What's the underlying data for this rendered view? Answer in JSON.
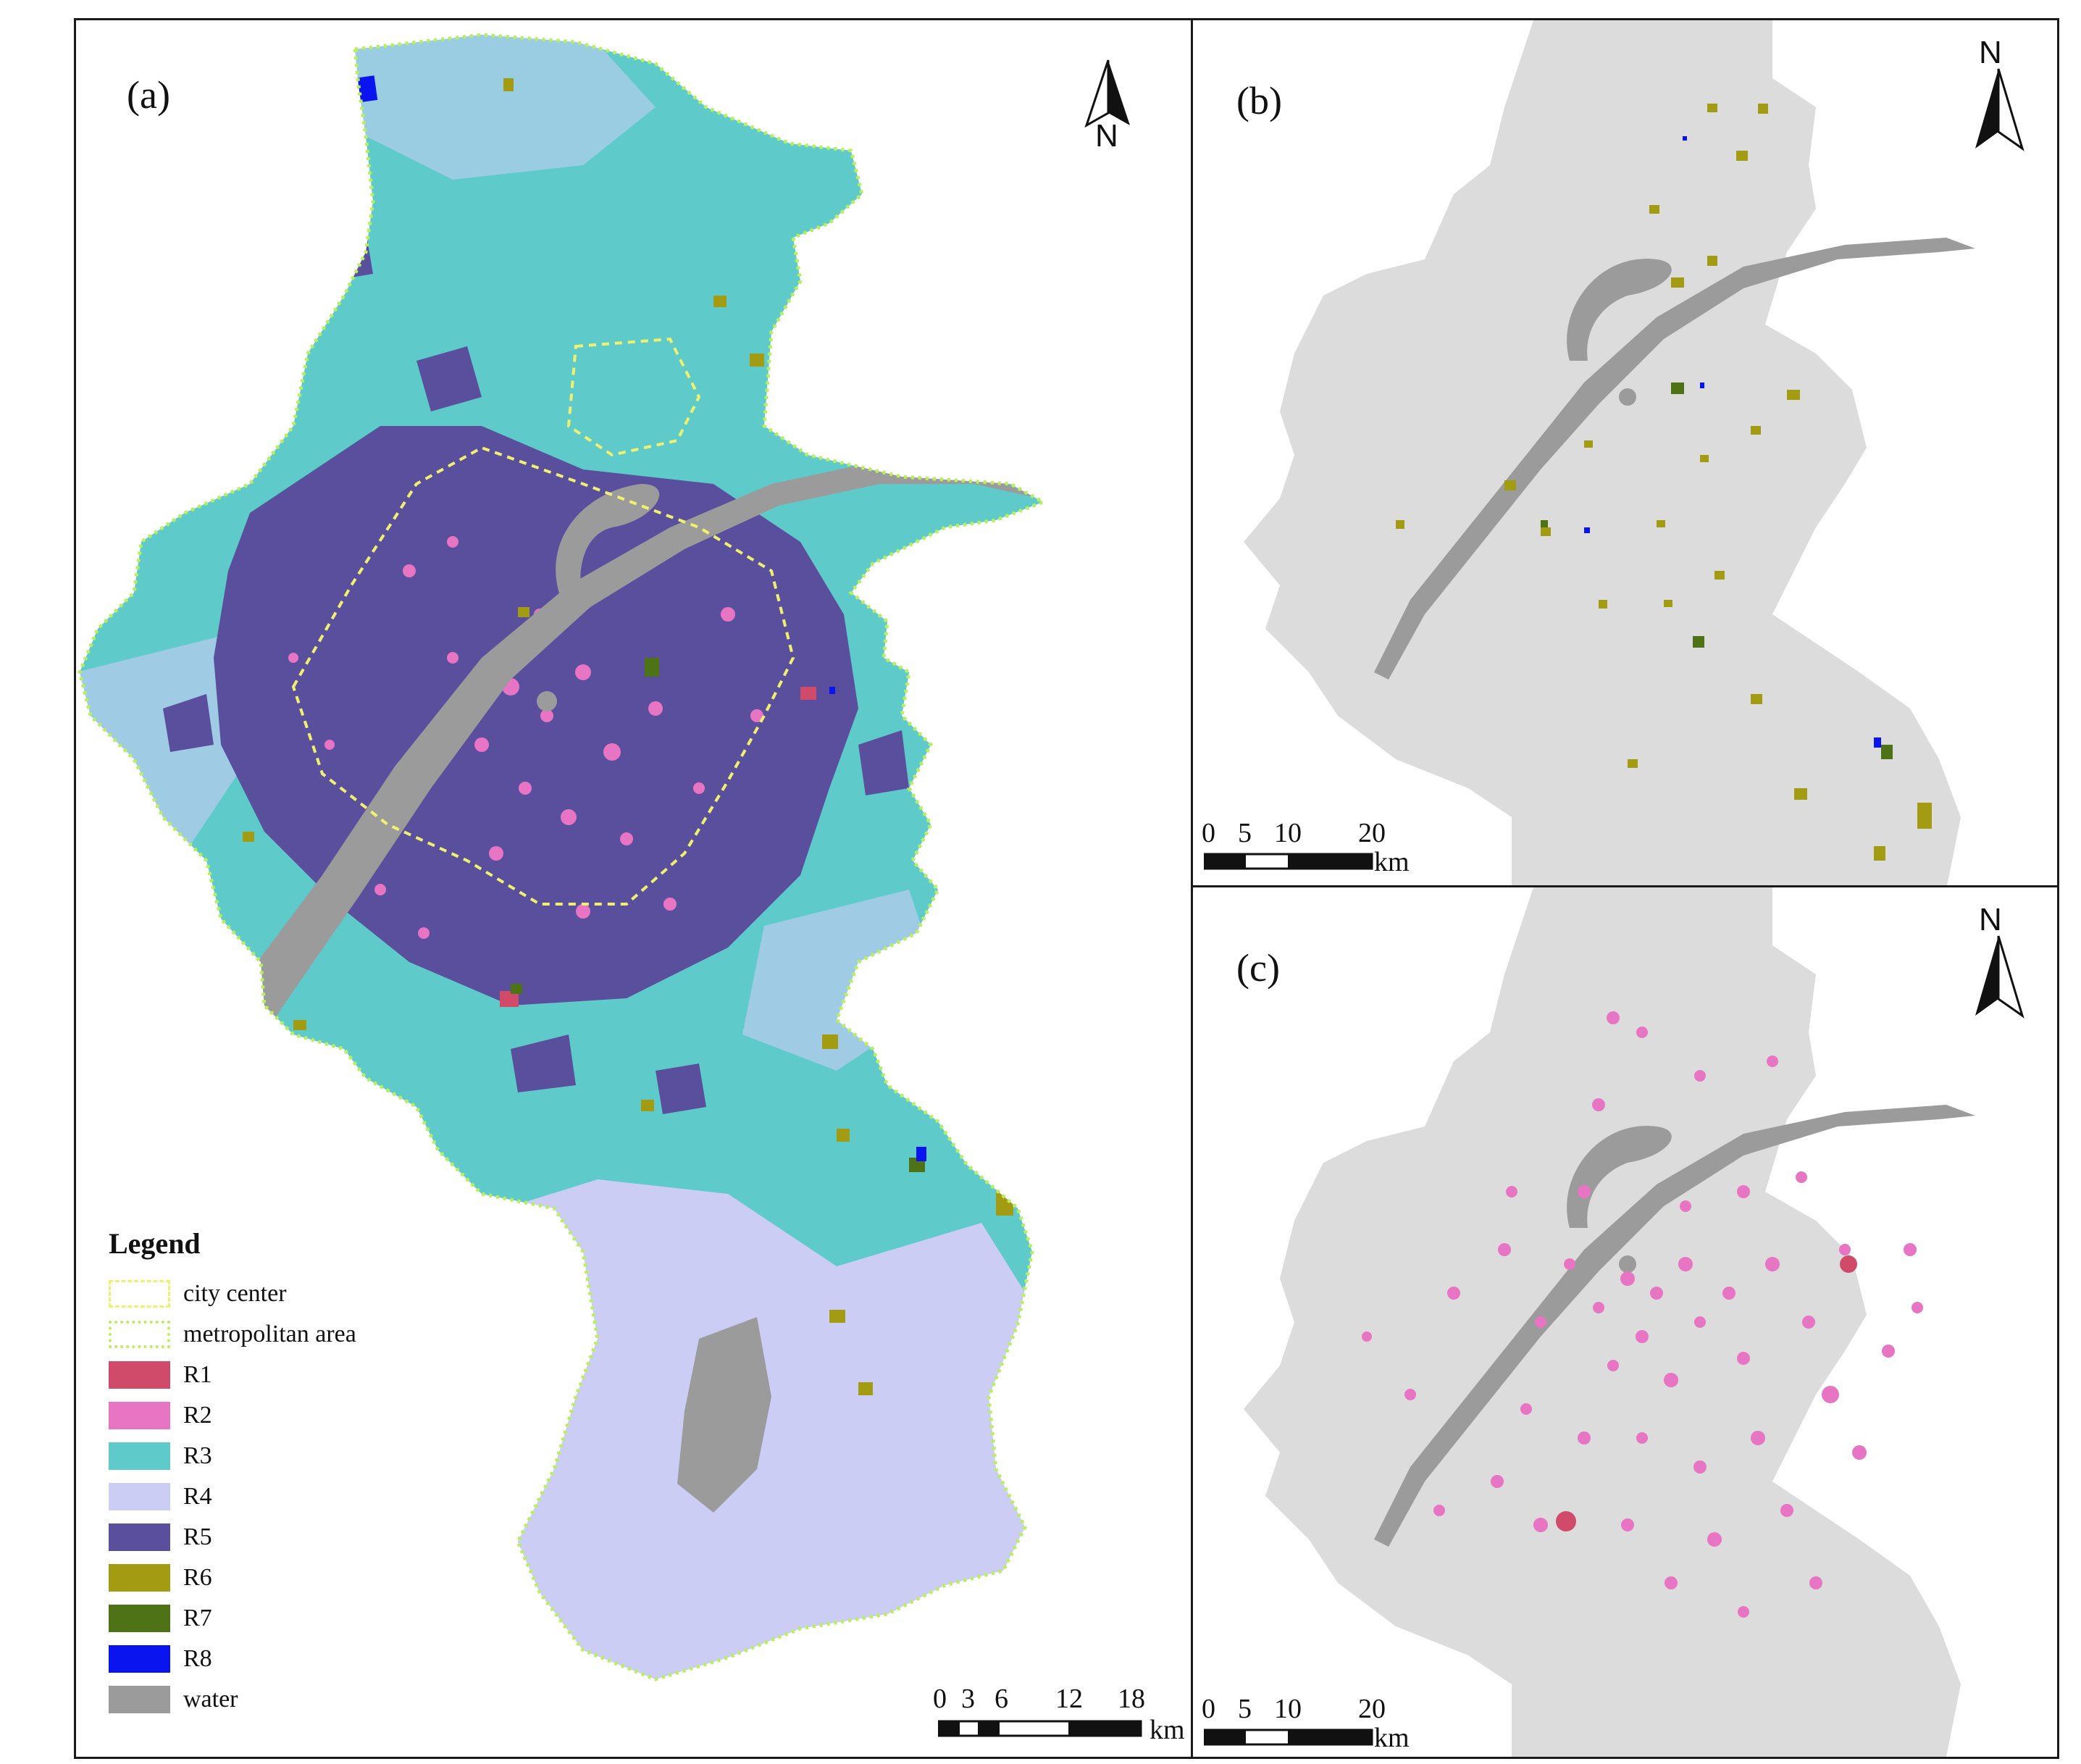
{
  "panels": {
    "a": {
      "label": "(a)",
      "north": "N",
      "scale": {
        "ticks": [
          "0",
          "3",
          "6",
          "12",
          "18"
        ],
        "unit": "km"
      }
    },
    "b": {
      "label": "(b)",
      "north": "N",
      "scale": {
        "ticks": [
          "0",
          "5",
          "10",
          "20"
        ],
        "unit": "km"
      }
    },
    "c": {
      "label": "(c)",
      "north": "N",
      "scale": {
        "ticks": [
          "0",
          "5",
          "10",
          "20"
        ],
        "unit": "km"
      }
    }
  },
  "legend": {
    "title": "Legend",
    "items": [
      {
        "label": "city center",
        "color": "#f0f070",
        "style": "dashed-outline"
      },
      {
        "label": "metropolitan area",
        "color": "#b8f05a",
        "style": "dotted-outline"
      },
      {
        "label": "R1",
        "color": "#d04a6a",
        "style": "fill"
      },
      {
        "label": "R2",
        "color": "#e874c4",
        "style": "fill"
      },
      {
        "label": "R3",
        "color": "#5ecbca",
        "style": "fill"
      },
      {
        "label": "R4",
        "color": "#cccdf5",
        "style": "fill"
      },
      {
        "label": "R5",
        "color": "#5a4f9c",
        "style": "fill"
      },
      {
        "label": "R6",
        "color": "#a39c12",
        "style": "fill"
      },
      {
        "label": "R7",
        "color": "#4d7316",
        "style": "fill"
      },
      {
        "label": "R8",
        "color": "#0a14ef",
        "style": "fill"
      },
      {
        "label": "water",
        "color": "#9b9b9b",
        "style": "fill"
      }
    ]
  },
  "colors": {
    "base_gray": "#dcdcdc",
    "water": "#9b9b9b"
  }
}
